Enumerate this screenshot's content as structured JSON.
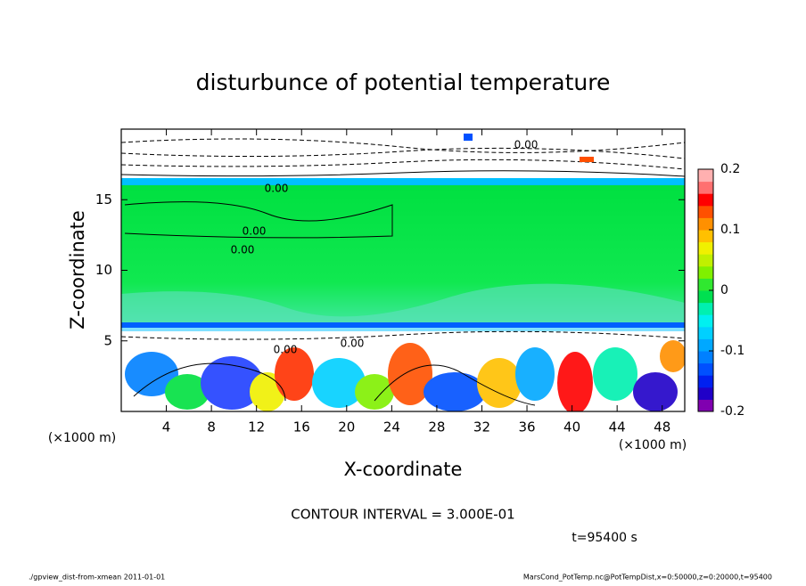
{
  "chart_data": {
    "type": "contour",
    "title": "disturbunce of potential temperature",
    "xlabel": "X-coordinate",
    "ylabel": "Z-coordinate",
    "x_unit": "(×1000 m)",
    "y_unit": "(×1000 m)",
    "xlim": [
      0,
      50
    ],
    "xticks": [
      4,
      8,
      12,
      16,
      20,
      24,
      28,
      32,
      36,
      40,
      44,
      48
    ],
    "ylim": [
      0,
      20
    ],
    "yticks": [
      5,
      10,
      15
    ],
    "colorbar": {
      "lim": [
        -0.2,
        0.2
      ],
      "ticks": [
        -0.2,
        -0.1,
        0,
        0.1,
        0.2
      ],
      "colors": [
        "#8000b0",
        "#2000c8",
        "#0020f0",
        "#0050ff",
        "#0080ff",
        "#00a8ff",
        "#00d0ff",
        "#00f0f0",
        "#00f0b0",
        "#00e050",
        "#30e830",
        "#80f000",
        "#c0f000",
        "#f0f000",
        "#ffc000",
        "#ff9000",
        "#ff5000",
        "#ff0000",
        "#ff7070",
        "#ffb0b0"
      ]
    },
    "contour_labels": [
      "0.00",
      "0.00",
      "0.00",
      "0.00",
      "0.00",
      "0.00"
    ],
    "contour_interval": "CONTOUR INTERVAL = 3.000E-01",
    "time_label": "t=95400 s"
  },
  "footer": {
    "left": "./gpview_dist-from-xmean  2011-01-01",
    "right": "MarsCond_PotTemp.nc@PotTempDist,x=0:50000,z=0:20000,t=95400"
  }
}
